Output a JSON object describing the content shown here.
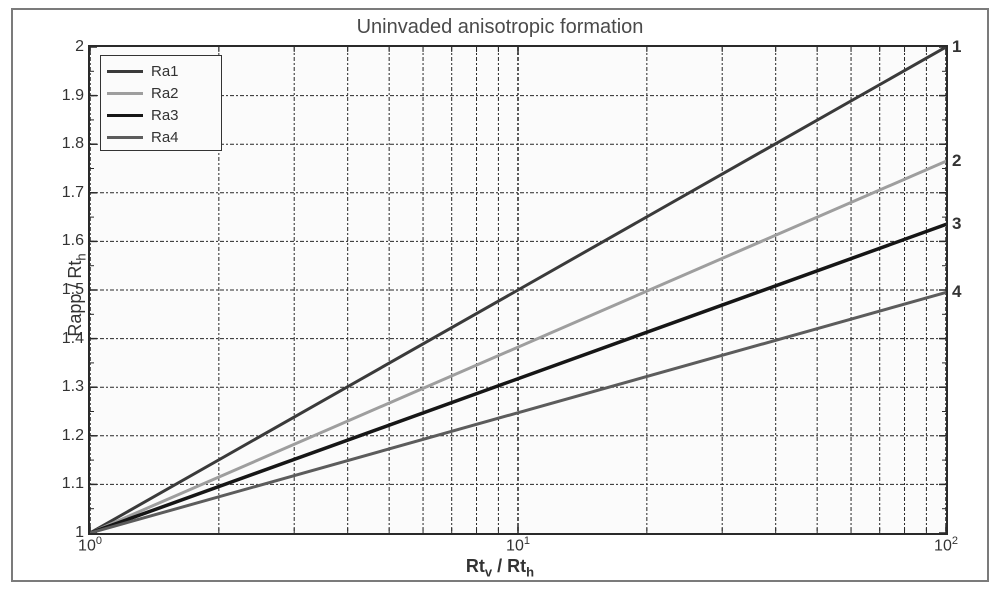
{
  "title": "Uninvaded anisotropic formation",
  "xlabel_parts": [
    "Rt",
    "v",
    " / Rt",
    "h"
  ],
  "ylabel_parts": [
    "Rapp / Rt",
    "h"
  ],
  "chart": {
    "type": "line",
    "x_scale": "log",
    "y_scale": "linear",
    "xlim": [
      1,
      100
    ],
    "ylim": [
      1,
      2
    ],
    "background_color": "#fbfbfb",
    "border_color": "#2a2a2a",
    "grid_color": "#282828",
    "grid_dash": [
      4,
      2,
      2,
      2
    ],
    "xtick_decades": [
      0,
      1,
      2
    ],
    "y_major_step": 0.1,
    "y_minor_step": 0.05,
    "series": [
      {
        "name": "Ra1",
        "color": "#3a3a3a",
        "width": 3.0,
        "end_label": "1",
        "y_at_xmax": 2.0
      },
      {
        "name": "Ra2",
        "color": "#9e9e9e",
        "width": 3.0,
        "end_label": "2",
        "y_at_xmax": 1.765
      },
      {
        "name": "Ra3",
        "color": "#161616",
        "width": 3.5,
        "end_label": "3",
        "y_at_xmax": 1.635
      },
      {
        "name": "Ra4",
        "color": "#5c5c5c",
        "width": 3.0,
        "end_label": "4",
        "y_at_xmax": 1.495
      }
    ],
    "legend": {
      "position": "upper-left",
      "labels": [
        "Ra1",
        "Ra2",
        "Ra3",
        "Ra4"
      ]
    }
  }
}
